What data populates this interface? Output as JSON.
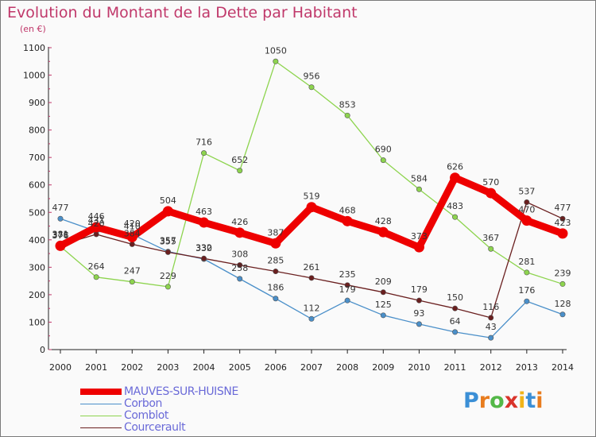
{
  "title": "Evolution du Montant de la Dette par Habitant",
  "unit": "(en €)",
  "logo": "Proxiti",
  "chart_data": {
    "type": "line",
    "x": [
      "2000",
      "2001",
      "2002",
      "2003",
      "2004",
      "2005",
      "2006",
      "2007",
      "2008",
      "2009",
      "2010",
      "2011",
      "2012",
      "2013",
      "2014"
    ],
    "ylim": [
      0,
      1100
    ],
    "yticks": [
      0,
      100,
      200,
      300,
      400,
      500,
      600,
      700,
      800,
      900,
      1000,
      1100
    ],
    "grid": false,
    "legend_position": "bottom-left",
    "series": [
      {
        "name": "MAUVES-SUR-HUISNE",
        "color": "#ee0000",
        "values": [
          378,
          446,
          410,
          504,
          463,
          426,
          387,
          519,
          468,
          428,
          373,
          626,
          570,
          470,
          423
        ]
      },
      {
        "name": "Corbon",
        "color": "#4a8fc9",
        "values": [
          477,
          431,
          420,
          357,
          330,
          258,
          186,
          112,
          179,
          125,
          93,
          64,
          43,
          176,
          128
        ]
      },
      {
        "name": "Comblot",
        "color": "#8dd44e",
        "values": [
          376,
          264,
          247,
          229,
          716,
          652,
          1050,
          956,
          853,
          690,
          584,
          483,
          367,
          281,
          239
        ]
      },
      {
        "name": "Courcerault",
        "color": "#6a1f1f",
        "values": [
          381,
          420,
          384,
          355,
          332,
          308,
          285,
          261,
          235,
          209,
          179,
          150,
          116,
          537,
          477
        ]
      }
    ]
  }
}
